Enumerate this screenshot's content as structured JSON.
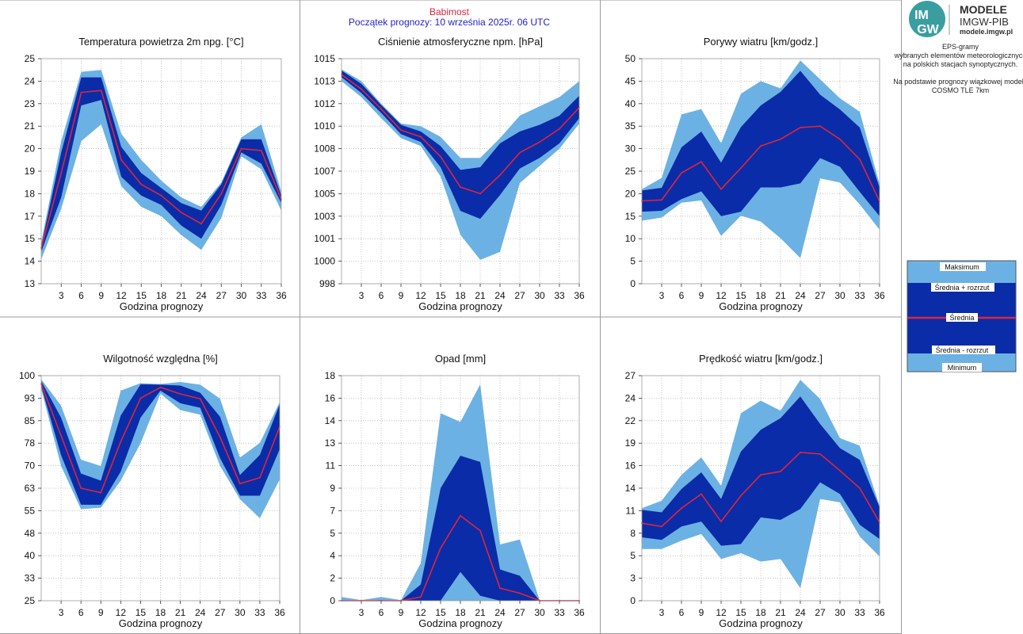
{
  "header": {
    "station": "Babimost",
    "forecast_start": "Początek prognozy: 10 września 2025r. 06 UTC"
  },
  "logo": {
    "badge_top": "IM",
    "badge_bottom": "GW",
    "title": "MODELE",
    "subtitle": "IMGW-PIB",
    "url": "modele.imgw.pl"
  },
  "info": {
    "lines": [
      "EPS-gramy",
      "wybranych elementów meteorologicznych",
      "na polskich stacjach  synoptycznych.",
      "",
      "Na podstawie prognozy wiązkowej modelu",
      "COSMO TLE 7km"
    ]
  },
  "legend": {
    "max": "Maksimum",
    "mean_plus": "Średnia + rozrzut",
    "mean": "Średnia",
    "mean_minus": "Średnia - rozrzut",
    "min": "Minimum"
  },
  "colors": {
    "light_band": "#6cb1e3",
    "dark_band": "#0a2ca8",
    "mean_line": "#e0243a",
    "station": "#e0243a",
    "forecast_start": "#1f1fc8",
    "grid": "#b4b4b4",
    "panel_border": "#9a9a9a"
  },
  "chart_data": [
    {
      "type": "area",
      "title": "Temperatura powietrza 2m npg. [°C]",
      "xlabel": "Godzina prognozy",
      "ylim": [
        13,
        25
      ],
      "xlim": [
        0,
        36
      ],
      "x_ticks": [
        "3",
        "6",
        "9",
        "12",
        "15",
        "18",
        "21",
        "24",
        "27",
        "30",
        "33",
        "36"
      ],
      "y_ticks": [
        "25",
        "24",
        "23",
        "21",
        "20",
        "19",
        "18",
        "17",
        "15",
        "14",
        "13"
      ],
      "grid": true,
      "x": [
        0,
        3,
        6,
        9,
        12,
        15,
        18,
        21,
        24,
        27,
        30,
        33,
        36
      ],
      "series": [
        {
          "name": "Maksimum",
          "values": [
            15.2,
            20.6,
            24.3,
            24.4,
            21.0,
            19.6,
            18.5,
            17.6,
            17.1,
            18.4,
            20.8,
            21.5,
            17.9
          ]
        },
        {
          "name": "Średnia + rozrzut",
          "values": [
            15.0,
            20.0,
            24.0,
            24.0,
            20.3,
            18.9,
            18.1,
            17.3,
            16.9,
            18.3,
            20.7,
            20.7,
            17.7
          ]
        },
        {
          "name": "Średnia",
          "values": [
            14.9,
            18.9,
            23.2,
            23.3,
            19.6,
            18.3,
            17.7,
            16.8,
            16.2,
            17.8,
            20.2,
            20.1,
            17.5
          ]
        },
        {
          "name": "Średnia - rozrzut",
          "values": [
            14.7,
            17.6,
            22.5,
            22.8,
            18.7,
            17.7,
            17.2,
            16.1,
            15.4,
            17.2,
            20.0,
            19.4,
            17.3
          ]
        },
        {
          "name": "Minimum",
          "values": [
            14.3,
            17.0,
            20.6,
            21.5,
            18.2,
            17.1,
            16.6,
            15.6,
            14.8,
            16.5,
            19.8,
            19.1,
            16.9
          ]
        }
      ]
    },
    {
      "type": "area",
      "title": "Ciśnienie atmosferyczne npm. [hPa]",
      "xlabel": "Godzina prognozy",
      "ylim": [
        998,
        1015
      ],
      "xlim": [
        0,
        36
      ],
      "x_ticks": [
        "3",
        "6",
        "9",
        "12",
        "15",
        "18",
        "21",
        "24",
        "27",
        "30",
        "33",
        "36"
      ],
      "y_ticks": [
        "1015",
        "1013",
        "1012",
        "1010",
        "1008",
        "1007",
        "1005",
        "1003",
        "1001",
        "1000",
        "998"
      ],
      "grid": true,
      "x": [
        0,
        3,
        6,
        9,
        12,
        15,
        18,
        21,
        24,
        27,
        30,
        33,
        36
      ],
      "series": [
        {
          "name": "Maksimum",
          "values": [
            1014.2,
            1013.3,
            1011.6,
            1010.1,
            1009.9,
            1009.1,
            1007.5,
            1007.5,
            1009.0,
            1010.7,
            1011.4,
            1012.1,
            1013.3
          ]
        },
        {
          "name": "Średnia + rozrzut",
          "values": [
            1014.1,
            1013.1,
            1011.5,
            1010.0,
            1009.5,
            1008.4,
            1006.6,
            1006.8,
            1008.6,
            1009.5,
            1010.0,
            1010.7,
            1012.2
          ]
        },
        {
          "name": "Średnia",
          "values": [
            1013.8,
            1012.7,
            1011.2,
            1009.6,
            1009.1,
            1007.6,
            1005.3,
            1004.8,
            1006.2,
            1007.9,
            1008.7,
            1009.7,
            1011.3
          ]
        },
        {
          "name": "Średnia - rozrzut",
          "values": [
            1013.6,
            1012.4,
            1010.9,
            1009.3,
            1008.7,
            1006.8,
            1003.5,
            1002.9,
            1004.7,
            1006.7,
            1007.5,
            1008.6,
            1010.5
          ]
        },
        {
          "name": "Minimum",
          "values": [
            1013.3,
            1012.1,
            1010.5,
            1009.0,
            1008.4,
            1006.1,
            1001.7,
            999.8,
            1000.4,
            1005.6,
            1006.9,
            1008.2,
            1010.1
          ]
        }
      ]
    },
    {
      "type": "area",
      "title": "Porywy wiatru [km/godz.]",
      "xlabel": "Godzina prognozy",
      "ylim": [
        0,
        50
      ],
      "xlim": [
        0,
        36
      ],
      "x_ticks": [
        "3",
        "6",
        "9",
        "12",
        "15",
        "18",
        "21",
        "24",
        "27",
        "30",
        "33",
        "36"
      ],
      "y_ticks": [
        "50",
        "45",
        "40",
        "35",
        "30",
        "25",
        "20",
        "15",
        "10",
        "5",
        "0"
      ],
      "grid": true,
      "x": [
        0,
        3,
        6,
        9,
        12,
        15,
        18,
        21,
        24,
        27,
        30,
        33,
        36
      ],
      "series": [
        {
          "name": "Maksimum",
          "values": [
            21.0,
            23.5,
            37.6,
            38.8,
            31.2,
            42.2,
            45.0,
            43.4,
            49.6,
            45.4,
            41.2,
            38.2,
            22.1
          ]
        },
        {
          "name": "Średnia + rozrzut",
          "values": [
            20.7,
            21.3,
            30.3,
            33.8,
            26.9,
            34.8,
            39.6,
            42.6,
            47.3,
            42.0,
            38.7,
            34.7,
            21.3
          ]
        },
        {
          "name": "Średnia",
          "values": [
            18.4,
            18.6,
            24.6,
            27.1,
            21.0,
            25.7,
            30.6,
            32.1,
            34.7,
            35.0,
            32.1,
            27.6,
            18.3
          ]
        },
        {
          "name": "Średnia - rozrzut",
          "values": [
            16.0,
            16.2,
            18.8,
            20.5,
            15.0,
            16.0,
            21.4,
            21.4,
            22.3,
            27.9,
            26.0,
            20.4,
            15.0
          ]
        },
        {
          "name": "Minimum",
          "values": [
            14.0,
            14.7,
            18.0,
            18.5,
            10.6,
            15.1,
            13.8,
            10.1,
            5.7,
            23.4,
            22.5,
            17.6,
            12.0
          ]
        }
      ]
    },
    {
      "type": "area",
      "title": "Wilgotność względna [%]",
      "xlabel": "Godzina prognozy",
      "ylim": [
        25,
        100
      ],
      "xlim": [
        0,
        36
      ],
      "x_ticks": [
        "3",
        "6",
        "9",
        "12",
        "15",
        "18",
        "21",
        "24",
        "27",
        "30",
        "33",
        "36"
      ],
      "y_ticks": [
        "100",
        "93",
        "85",
        "78",
        "70",
        "63",
        "55",
        "48",
        "40",
        "33",
        "25"
      ],
      "grid": true,
      "x": [
        0,
        3,
        6,
        9,
        12,
        15,
        18,
        21,
        24,
        27,
        30,
        33,
        36
      ],
      "series": [
        {
          "name": "Maksimum",
          "values": [
            98.8,
            90.0,
            72.0,
            69.9,
            95.0,
            97.5,
            97.2,
            97.9,
            97.0,
            92.3,
            72.7,
            77.6,
            91.2
          ]
        },
        {
          "name": "Średnia + rozrzut",
          "values": [
            98.2,
            86.0,
            67.4,
            65.0,
            86.7,
            97.1,
            97.0,
            96.7,
            94.3,
            86.3,
            66.9,
            73.6,
            90.5
          ]
        },
        {
          "name": "Średnia",
          "values": [
            97.2,
            80.0,
            62.5,
            61.0,
            78.0,
            92.5,
            96.1,
            93.9,
            92.3,
            79.5,
            64.0,
            66.0,
            83.0
          ]
        },
        {
          "name": "Średnia - rozrzut",
          "values": [
            96.5,
            73.5,
            57.0,
            57.0,
            68.0,
            86.0,
            95.0,
            90.8,
            89.3,
            72.5,
            60.0,
            60.0,
            75.5
          ]
        },
        {
          "name": "Minimum",
          "values": [
            95.5,
            69.9,
            55.5,
            56.0,
            65.0,
            77.5,
            94.0,
            88.5,
            87.0,
            69.9,
            58.8,
            52.5,
            65.4
          ]
        }
      ]
    },
    {
      "type": "area",
      "title": "Opad [mm]",
      "xlabel": "Godzina prognozy",
      "ylim": [
        0,
        18
      ],
      "xlim": [
        0,
        36
      ],
      "x_ticks": [
        "3",
        "6",
        "9",
        "12",
        "15",
        "18",
        "21",
        "24",
        "27",
        "30",
        "33",
        "36"
      ],
      "y_ticks": [
        "18",
        "16",
        "14",
        "13",
        "11",
        "9",
        "7",
        "5",
        "4",
        "2",
        "0"
      ],
      "grid": true,
      "x": [
        0,
        3,
        6,
        9,
        12,
        15,
        18,
        21,
        24,
        27,
        30,
        33,
        36
      ],
      "series": [
        {
          "name": "Maksimum",
          "values": [
            0.3,
            0.05,
            0.3,
            0.05,
            3.0,
            15.0,
            14.3,
            17.3,
            4.5,
            4.9,
            0.05,
            0.05,
            0.05
          ]
        },
        {
          "name": "Średnia + rozrzut",
          "values": [
            0.05,
            0.0,
            0.05,
            0.0,
            1.3,
            9.0,
            11.6,
            11.1,
            2.5,
            2.0,
            0.0,
            0.0,
            0.0
          ]
        },
        {
          "name": "Średnia",
          "values": [
            0.0,
            0.0,
            0.0,
            0.0,
            0.3,
            4.2,
            6.8,
            5.6,
            1.0,
            0.6,
            0.0,
            0.0,
            0.0
          ]
        },
        {
          "name": "Średnia - rozrzut",
          "values": [
            0.0,
            0.0,
            0.0,
            0.0,
            0.0,
            0.0,
            2.3,
            0.4,
            0.0,
            0.0,
            0.0,
            0.0,
            0.0
          ]
        },
        {
          "name": "Minimum",
          "values": [
            0.0,
            0.0,
            0.0,
            0.0,
            0.0,
            0.0,
            0.0,
            0.0,
            0.0,
            0.0,
            0.0,
            0.0,
            0.0
          ]
        }
      ]
    },
    {
      "type": "area",
      "title": "Prędkość wiatru [km/godz.]",
      "xlabel": "Godzina prognozy",
      "ylim": [
        0,
        27
      ],
      "xlim": [
        0,
        36
      ],
      "x_ticks": [
        "3",
        "6",
        "9",
        "12",
        "15",
        "18",
        "21",
        "24",
        "27",
        "30",
        "33",
        "36"
      ],
      "y_ticks": [
        "27",
        "24",
        "22",
        "19",
        "16",
        "14",
        "11",
        "8",
        "5",
        "3",
        "0"
      ],
      "grid": true,
      "x": [
        0,
        3,
        6,
        9,
        12,
        15,
        18,
        21,
        24,
        27,
        30,
        33,
        36
      ],
      "series": [
        {
          "name": "Maksimum",
          "values": [
            11.1,
            12.0,
            15.1,
            17.2,
            13.8,
            22.5,
            24.0,
            22.8,
            26.5,
            24.2,
            19.5,
            18.6,
            11.4
          ]
        },
        {
          "name": "Średnia + rozrzut",
          "values": [
            10.9,
            10.6,
            13.4,
            15.4,
            12.2,
            17.9,
            20.5,
            21.9,
            24.5,
            21.2,
            18.3,
            16.9,
            11.2
          ]
        },
        {
          "name": "Średnia",
          "values": [
            9.3,
            8.9,
            11.1,
            12.8,
            9.5,
            12.6,
            15.1,
            15.5,
            17.8,
            17.6,
            15.6,
            13.5,
            9.4
          ]
        },
        {
          "name": "Średnia - rozrzut",
          "values": [
            7.6,
            7.3,
            8.9,
            9.5,
            6.6,
            6.8,
            10.0,
            9.7,
            11.0,
            14.2,
            12.8,
            9.1,
            7.4
          ]
        },
        {
          "name": "Minimum",
          "values": [
            6.2,
            6.2,
            7.2,
            8.0,
            5.0,
            5.7,
            4.7,
            5.0,
            1.5,
            12.2,
            11.8,
            7.7,
            5.3
          ]
        }
      ]
    }
  ]
}
